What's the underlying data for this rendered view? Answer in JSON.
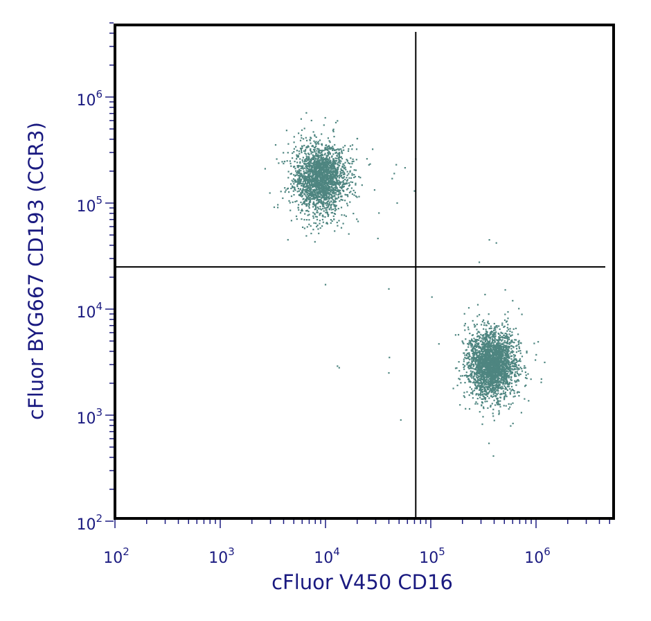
{
  "chart_data": {
    "type": "scatter",
    "title": "",
    "xlabel": "cFluor V450 CD16",
    "ylabel": "cFluor BYG667 CD193 (CCR3)",
    "xscale": "log",
    "yscale": "log",
    "xlim": [
      100,
      4000000
    ],
    "ylim": [
      100,
      4500000
    ],
    "grid": false,
    "legend": "none",
    "x_ticks": [
      {
        "value": 100,
        "base": "10",
        "exp": "2"
      },
      {
        "value": 1000,
        "base": "10",
        "exp": "3"
      },
      {
        "value": 10000,
        "base": "10",
        "exp": "4"
      },
      {
        "value": 100000,
        "base": "10",
        "exp": "5"
      },
      {
        "value": 1000000,
        "base": "10",
        "exp": "6"
      }
    ],
    "y_ticks": [
      {
        "value": 100,
        "base": "10",
        "exp": "2"
      },
      {
        "value": 1000,
        "base": "10",
        "exp": "3"
      },
      {
        "value": 10000,
        "base": "10",
        "exp": "4"
      },
      {
        "value": 100000,
        "base": "10",
        "exp": "5"
      },
      {
        "value": 1000000,
        "base": "10",
        "exp": "6"
      }
    ],
    "quadrant_gate": {
      "x": 72000,
      "y": 25000
    },
    "point_color": "#4e8580",
    "populations": [
      {
        "x_center": 9000,
        "y_center": 170000,
        "x_spread_decades": 0.12,
        "y_spread_decades": 0.16,
        "count": 2200
      },
      {
        "x_center": 380000,
        "y_center": 3000,
        "x_spread_decades": 0.11,
        "y_spread_decades": 0.15,
        "count": 2600
      }
    ],
    "outliers": [
      [
        10000,
        17000
      ],
      [
        13000,
        2900
      ],
      [
        13500,
        2800
      ],
      [
        40000,
        15500
      ],
      [
        40500,
        3500
      ],
      [
        40000,
        2500
      ],
      [
        52000,
        900
      ],
      [
        48000,
        100000
      ],
      [
        45000,
        190000
      ],
      [
        47000,
        230000
      ],
      [
        72000,
        260000
      ],
      [
        70000,
        130000
      ],
      [
        57000,
        215000
      ],
      [
        43000,
        170000
      ],
      [
        360000,
        45000
      ],
      [
        420000,
        42000
      ],
      [
        280000,
        11000
      ],
      [
        600000,
        12000
      ]
    ]
  }
}
